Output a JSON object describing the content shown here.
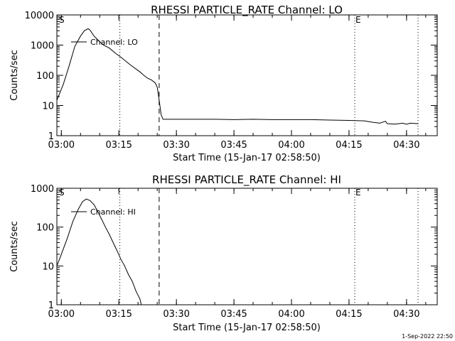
{
  "footer_timestamp": "1-Sep-2022 22:50",
  "chart_data": [
    {
      "type": "line",
      "title": "RHESSI PARTICLE_RATE Channel: LO",
      "ylabel": "Counts/sec",
      "xlabel": "Start Time (15-Jan-17 02:58:50)",
      "y_scale": "log",
      "ylim": [
        1,
        10000
      ],
      "xlim": [
        "02:58:50",
        "04:38:00"
      ],
      "x_tick_labels": [
        "03:00",
        "03:15",
        "03:30",
        "03:45",
        "04:00",
        "04:15",
        "04:30"
      ],
      "y_tick_labels": [
        "1",
        "10",
        "100",
        "1000",
        "10000"
      ],
      "corner_markers": {
        "left": "S",
        "right": "E"
      },
      "legend": {
        "label": "Channel: LO",
        "position": "top-left"
      },
      "dotted_lines_x": [
        "03:15:15",
        "04:16:30",
        "04:33:00"
      ],
      "dashed_line_x": "03:25:30",
      "series": [
        {
          "name": "Channel: LO",
          "x": [
            "02:58:50",
            "03:00:30",
            "03:02:00",
            "03:03:30",
            "03:05:00",
            "03:06:00",
            "03:07:00",
            "03:07:30",
            "03:08:30",
            "03:09:30",
            "03:11:00",
            "03:12:30",
            "03:14:00",
            "03:15:30",
            "03:17:00",
            "03:18:00",
            "03:19:30",
            "03:20:30",
            "03:21:30",
            "03:22:30",
            "03:23:30",
            "03:24:30",
            "03:25:00",
            "03:25:30",
            "03:26:00",
            "03:26:30",
            "03:30:00",
            "03:35:00",
            "03:40:00",
            "03:45:00",
            "03:50:00",
            "03:55:00",
            "04:00:00",
            "04:05:00",
            "04:10:00",
            "04:15:00",
            "04:19:00",
            "04:21:00",
            "04:23:00",
            "04:24:30",
            "04:25:00",
            "04:27:00",
            "04:29:00",
            "04:30:00",
            "04:31:00",
            "04:33:00"
          ],
          "y": [
            15,
            50,
            200,
            900,
            2000,
            3000,
            3500,
            3100,
            2000,
            1500,
            1000,
            800,
            550,
            400,
            280,
            220,
            160,
            130,
            100,
            80,
            70,
            55,
            40,
            15,
            5,
            3.5,
            3.5,
            3.5,
            3.5,
            3.4,
            3.5,
            3.4,
            3.4,
            3.4,
            3.3,
            3.2,
            3.1,
            2.8,
            2.6,
            3.0,
            2.5,
            2.4,
            2.6,
            2.4,
            2.6,
            2.5
          ]
        }
      ]
    },
    {
      "type": "line",
      "title": "RHESSI PARTICLE_RATE Channel: HI",
      "ylabel": "Counts/sec",
      "xlabel": "Start Time (15-Jan-17 02:58:50)",
      "y_scale": "log",
      "ylim": [
        1,
        1000
      ],
      "xlim": [
        "02:58:50",
        "04:38:00"
      ],
      "x_tick_labels": [
        "03:00",
        "03:15",
        "03:30",
        "03:45",
        "04:00",
        "04:15",
        "04:30"
      ],
      "y_tick_labels": [
        "1",
        "10",
        "100",
        "1000"
      ],
      "corner_markers": {
        "left": "S",
        "right": "E"
      },
      "legend": {
        "label": "Channel: HI",
        "position": "top-left"
      },
      "dotted_lines_x": [
        "03:15:15",
        "04:16:30",
        "04:33:00"
      ],
      "dashed_line_x": "03:25:30",
      "series": [
        {
          "name": "Channel: HI",
          "x": [
            "02:58:50",
            "03:00:00",
            "03:01:30",
            "03:03:00",
            "03:04:30",
            "03:05:30",
            "03:06:30",
            "03:07:30",
            "03:08:30",
            "03:09:30",
            "03:10:30",
            "03:11:30",
            "03:12:30",
            "03:13:30",
            "03:14:30",
            "03:15:30",
            "03:16:30",
            "03:17:30",
            "03:18:30",
            "03:19:30",
            "03:20:30",
            "03:20:50"
          ],
          "y": [
            10,
            20,
            50,
            140,
            300,
            450,
            530,
            480,
            380,
            250,
            160,
            100,
            65,
            40,
            25,
            15,
            10,
            6,
            4,
            2.2,
            1.4,
            1.0
          ]
        }
      ]
    }
  ]
}
